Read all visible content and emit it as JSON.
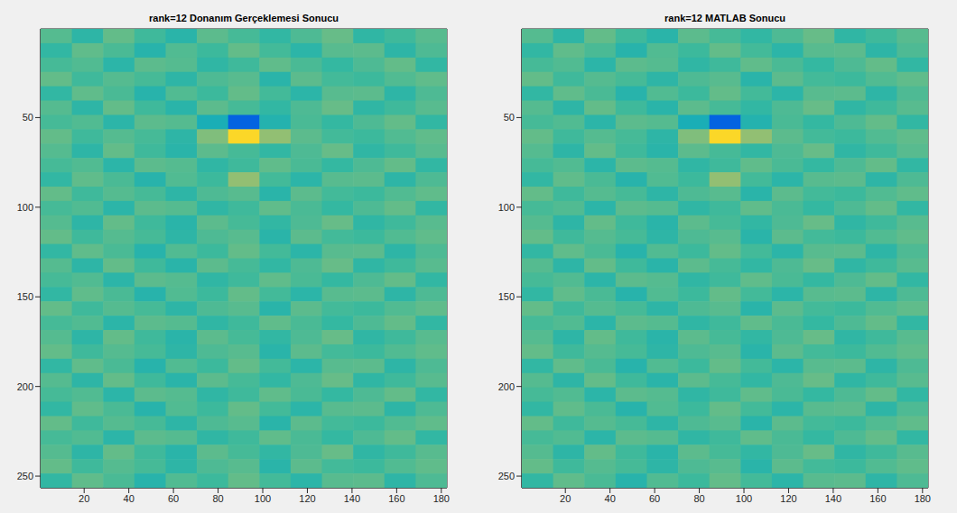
{
  "chart_data": [
    {
      "type": "heatmap",
      "title": "rank=12 Donanım Gerçeklemesi Sonucu",
      "x": [
        7.5,
        21.5,
        35.5,
        49.5,
        63.5,
        77.5,
        91.5,
        105.5,
        119.5,
        133.5,
        147.5,
        161.5,
        175.5
      ],
      "y": [
        4.5,
        12.5,
        20.5,
        28.5,
        36.5,
        44.5,
        52.5,
        60.5,
        68.5,
        76.5,
        84.5,
        92.5,
        100.5,
        108.5,
        116.5,
        124.5,
        132.5,
        140.5,
        148.5,
        156.5,
        164.5,
        172.5,
        180.5,
        188.5,
        196.5,
        204.5,
        212.5,
        220.5,
        228.5,
        236.5,
        244.5,
        252.5
      ],
      "z": [
        [
          0.08,
          -0.05,
          0.12,
          0.02,
          -0.07,
          0.1,
          0.04,
          -0.03,
          0.06,
          0.13,
          -0.04,
          0.02,
          0.09
        ],
        [
          -0.03,
          0.11,
          0.05,
          -0.08,
          0.07,
          0.01,
          0.12,
          0.03,
          -0.06,
          0.09,
          0.1,
          -0.05,
          0.06
        ],
        [
          0.04,
          0.07,
          -0.06,
          0.1,
          0.08,
          -0.04,
          0.02,
          0.11,
          0.05,
          -0.02,
          0.06,
          0.12,
          -0.03
        ],
        [
          0.12,
          0.02,
          0.08,
          0.04,
          -0.05,
          0.06,
          0.09,
          -0.07,
          0.1,
          0.03,
          0.01,
          0.07,
          0.11
        ],
        [
          -0.03,
          0.11,
          0.05,
          -0.08,
          0.07,
          0.01,
          0.12,
          0.03,
          -0.06,
          0.09,
          0.1,
          -0.05,
          0.06
        ],
        [
          0.08,
          -0.05,
          0.12,
          0.02,
          -0.07,
          0.1,
          0.04,
          -0.03,
          0.06,
          0.13,
          -0.04,
          0.02,
          0.09
        ],
        [
          0.04,
          0.07,
          -0.06,
          0.1,
          0.08,
          -0.15,
          -0.75,
          -0.1,
          0.05,
          -0.02,
          0.06,
          0.12,
          -0.03
        ],
        [
          0.12,
          0.02,
          0.08,
          0.04,
          -0.05,
          0.2,
          0.8,
          0.25,
          0.1,
          0.03,
          0.01,
          0.07,
          0.11
        ],
        [
          0.08,
          -0.05,
          0.12,
          0.02,
          -0.07,
          0.1,
          0.04,
          -0.03,
          0.06,
          0.13,
          -0.04,
          0.02,
          0.09
        ],
        [
          0.04,
          0.07,
          -0.06,
          0.1,
          0.08,
          -0.04,
          0.02,
          0.11,
          0.05,
          -0.02,
          0.06,
          0.12,
          -0.03
        ],
        [
          -0.03,
          0.11,
          0.05,
          -0.08,
          0.07,
          0.01,
          0.25,
          0.03,
          -0.06,
          0.09,
          0.1,
          -0.05,
          0.06
        ],
        [
          0.12,
          0.02,
          0.08,
          0.04,
          -0.05,
          0.06,
          0.09,
          -0.07,
          0.1,
          0.03,
          0.01,
          0.07,
          0.11
        ],
        [
          0.04,
          0.07,
          -0.06,
          0.1,
          0.08,
          -0.04,
          0.02,
          0.11,
          0.05,
          -0.02,
          0.06,
          0.12,
          -0.03
        ],
        [
          0.08,
          -0.05,
          0.12,
          0.02,
          -0.07,
          0.1,
          0.04,
          -0.03,
          0.06,
          0.13,
          -0.04,
          0.02,
          0.09
        ],
        [
          0.12,
          0.02,
          0.08,
          0.04,
          -0.05,
          0.06,
          0.09,
          -0.07,
          0.1,
          0.03,
          0.01,
          0.07,
          0.11
        ],
        [
          -0.03,
          0.11,
          0.05,
          -0.08,
          0.07,
          0.01,
          0.12,
          0.03,
          -0.06,
          0.09,
          0.1,
          -0.05,
          0.06
        ],
        [
          0.08,
          -0.05,
          0.12,
          0.02,
          -0.07,
          0.1,
          0.04,
          -0.03,
          0.06,
          0.13,
          -0.04,
          0.02,
          0.09
        ],
        [
          0.04,
          0.07,
          -0.06,
          0.1,
          0.08,
          -0.04,
          0.02,
          0.11,
          0.05,
          -0.02,
          0.06,
          0.12,
          -0.03
        ],
        [
          -0.03,
          0.11,
          0.05,
          -0.08,
          0.07,
          0.01,
          0.12,
          0.03,
          -0.06,
          0.09,
          0.1,
          -0.05,
          0.06
        ],
        [
          0.12,
          0.02,
          0.08,
          0.04,
          -0.05,
          0.06,
          0.09,
          -0.07,
          0.1,
          0.03,
          0.01,
          0.07,
          0.11
        ],
        [
          0.04,
          0.07,
          -0.06,
          0.1,
          0.08,
          -0.04,
          0.02,
          0.11,
          0.05,
          -0.02,
          0.06,
          0.12,
          -0.03
        ],
        [
          0.08,
          -0.05,
          0.12,
          0.02,
          -0.07,
          0.1,
          0.04,
          -0.03,
          0.06,
          0.13,
          -0.04,
          0.02,
          0.09
        ],
        [
          0.12,
          0.02,
          0.08,
          0.04,
          -0.05,
          0.06,
          0.09,
          -0.07,
          0.1,
          0.03,
          0.01,
          0.07,
          0.11
        ],
        [
          -0.03,
          0.11,
          0.05,
          -0.08,
          0.07,
          0.01,
          0.12,
          0.03,
          -0.06,
          0.09,
          0.1,
          -0.05,
          0.06
        ],
        [
          0.08,
          -0.05,
          0.12,
          0.02,
          -0.07,
          0.1,
          0.04,
          -0.03,
          0.06,
          0.13,
          -0.04,
          0.02,
          0.09
        ],
        [
          0.04,
          0.07,
          -0.06,
          0.1,
          0.08,
          -0.04,
          0.02,
          0.11,
          0.05,
          -0.02,
          0.06,
          0.12,
          -0.03
        ],
        [
          -0.03,
          0.11,
          0.05,
          -0.08,
          0.07,
          0.01,
          0.12,
          0.03,
          -0.06,
          0.09,
          0.1,
          -0.05,
          0.06
        ],
        [
          0.12,
          0.02,
          0.08,
          0.04,
          -0.05,
          0.06,
          0.09,
          -0.07,
          0.1,
          0.03,
          0.01,
          0.07,
          0.11
        ],
        [
          0.04,
          0.07,
          -0.06,
          0.1,
          0.08,
          -0.04,
          0.02,
          0.11,
          0.05,
          -0.02,
          0.06,
          0.12,
          -0.03
        ],
        [
          0.08,
          -0.05,
          0.12,
          0.02,
          -0.07,
          0.1,
          0.04,
          -0.03,
          0.06,
          0.13,
          -0.04,
          0.02,
          0.09
        ],
        [
          0.12,
          0.02,
          0.08,
          0.04,
          -0.05,
          0.06,
          0.09,
          -0.07,
          0.1,
          0.03,
          0.01,
          0.07,
          0.11
        ],
        [
          -0.03,
          0.11,
          0.05,
          -0.08,
          0.07,
          0.01,
          0.12,
          0.03,
          -0.06,
          0.09,
          0.1,
          -0.05,
          0.06
        ]
      ],
      "color_range": [
        -1,
        1
      ],
      "xlim": [
        0.5,
        182.5
      ],
      "ylim": [
        256.5,
        0.5
      ],
      "xticks": [
        20,
        40,
        60,
        80,
        100,
        120,
        140,
        160,
        180
      ],
      "yticks": [
        50,
        100,
        150,
        200,
        250
      ]
    },
    {
      "type": "heatmap",
      "title": "rank=12 MATLAB Sonucu",
      "x": [
        7.5,
        21.5,
        35.5,
        49.5,
        63.5,
        77.5,
        91.5,
        105.5,
        119.5,
        133.5,
        147.5,
        161.5,
        175.5
      ],
      "y": [
        4.5,
        12.5,
        20.5,
        28.5,
        36.5,
        44.5,
        52.5,
        60.5,
        68.5,
        76.5,
        84.5,
        92.5,
        100.5,
        108.5,
        116.5,
        124.5,
        132.5,
        140.5,
        148.5,
        156.5,
        164.5,
        172.5,
        180.5,
        188.5,
        196.5,
        204.5,
        212.5,
        220.5,
        228.5,
        236.5,
        244.5,
        252.5
      ],
      "z": [
        [
          0.08,
          -0.05,
          0.12,
          0.02,
          -0.07,
          0.1,
          0.04,
          -0.03,
          0.06,
          0.13,
          -0.04,
          0.02,
          0.09
        ],
        [
          -0.03,
          0.11,
          0.05,
          -0.08,
          0.07,
          0.01,
          0.12,
          0.03,
          -0.06,
          0.09,
          0.1,
          -0.05,
          0.06
        ],
        [
          0.04,
          0.07,
          -0.06,
          0.1,
          0.08,
          -0.04,
          0.02,
          0.11,
          0.05,
          -0.02,
          0.06,
          0.12,
          -0.03
        ],
        [
          0.12,
          0.02,
          0.08,
          0.04,
          -0.05,
          0.06,
          0.09,
          -0.07,
          0.1,
          0.03,
          0.01,
          0.07,
          0.11
        ],
        [
          -0.03,
          0.11,
          0.05,
          -0.08,
          0.07,
          0.01,
          0.12,
          0.03,
          -0.06,
          0.09,
          0.1,
          -0.05,
          0.06
        ],
        [
          0.08,
          -0.05,
          0.12,
          0.02,
          -0.07,
          0.1,
          0.04,
          -0.03,
          0.06,
          0.13,
          -0.04,
          0.02,
          0.09
        ],
        [
          0.04,
          0.07,
          -0.06,
          0.1,
          0.08,
          -0.15,
          -0.75,
          -0.1,
          0.05,
          -0.02,
          0.06,
          0.12,
          -0.03
        ],
        [
          0.12,
          0.02,
          0.08,
          0.04,
          -0.05,
          0.2,
          0.8,
          0.25,
          0.1,
          0.03,
          0.01,
          0.07,
          0.11
        ],
        [
          0.08,
          -0.05,
          0.12,
          0.02,
          -0.07,
          0.1,
          0.04,
          -0.03,
          0.06,
          0.13,
          -0.04,
          0.02,
          0.09
        ],
        [
          0.04,
          0.07,
          -0.06,
          0.1,
          0.08,
          -0.04,
          0.02,
          0.11,
          0.05,
          -0.02,
          0.06,
          0.12,
          -0.03
        ],
        [
          -0.03,
          0.11,
          0.05,
          -0.08,
          0.07,
          0.01,
          0.25,
          0.03,
          -0.06,
          0.09,
          0.1,
          -0.05,
          0.06
        ],
        [
          0.12,
          0.02,
          0.08,
          0.04,
          -0.05,
          0.06,
          0.09,
          -0.07,
          0.1,
          0.03,
          0.01,
          0.07,
          0.11
        ],
        [
          0.04,
          0.07,
          -0.06,
          0.1,
          0.08,
          -0.04,
          0.02,
          0.11,
          0.05,
          -0.02,
          0.06,
          0.12,
          -0.03
        ],
        [
          0.08,
          -0.05,
          0.12,
          0.02,
          -0.07,
          0.1,
          0.04,
          -0.03,
          0.06,
          0.13,
          -0.04,
          0.02,
          0.09
        ],
        [
          0.12,
          0.02,
          0.08,
          0.04,
          -0.05,
          0.06,
          0.09,
          -0.07,
          0.1,
          0.03,
          0.01,
          0.07,
          0.11
        ],
        [
          -0.03,
          0.11,
          0.05,
          -0.08,
          0.07,
          0.01,
          0.12,
          0.03,
          -0.06,
          0.09,
          0.1,
          -0.05,
          0.06
        ],
        [
          0.08,
          -0.05,
          0.12,
          0.02,
          -0.07,
          0.1,
          0.04,
          -0.03,
          0.06,
          0.13,
          -0.04,
          0.02,
          0.09
        ],
        [
          0.04,
          0.07,
          -0.06,
          0.1,
          0.08,
          -0.04,
          0.02,
          0.11,
          0.05,
          -0.02,
          0.06,
          0.12,
          -0.03
        ],
        [
          -0.03,
          0.11,
          0.05,
          -0.08,
          0.07,
          0.01,
          0.12,
          0.03,
          -0.06,
          0.09,
          0.1,
          -0.05,
          0.06
        ],
        [
          0.12,
          0.02,
          0.08,
          0.04,
          -0.05,
          0.06,
          0.09,
          -0.07,
          0.1,
          0.03,
          0.01,
          0.07,
          0.11
        ],
        [
          0.04,
          0.07,
          -0.06,
          0.1,
          0.08,
          -0.04,
          0.02,
          0.11,
          0.05,
          -0.02,
          0.06,
          0.12,
          -0.03
        ],
        [
          0.08,
          -0.05,
          0.12,
          0.02,
          -0.07,
          0.1,
          0.04,
          -0.03,
          0.06,
          0.13,
          -0.04,
          0.02,
          0.09
        ],
        [
          0.12,
          0.02,
          0.08,
          0.04,
          -0.05,
          0.06,
          0.09,
          -0.07,
          0.1,
          0.03,
          0.01,
          0.07,
          0.11
        ],
        [
          -0.03,
          0.11,
          0.05,
          -0.08,
          0.07,
          0.01,
          0.12,
          0.03,
          -0.06,
          0.09,
          0.1,
          -0.05,
          0.06
        ],
        [
          0.08,
          -0.05,
          0.12,
          0.02,
          -0.07,
          0.1,
          0.04,
          -0.03,
          0.06,
          0.13,
          -0.04,
          0.02,
          0.09
        ],
        [
          0.04,
          0.07,
          -0.06,
          0.1,
          0.08,
          -0.04,
          0.02,
          0.11,
          0.05,
          -0.02,
          0.06,
          0.12,
          -0.03
        ],
        [
          -0.03,
          0.11,
          0.05,
          -0.08,
          0.07,
          0.01,
          0.12,
          0.03,
          -0.06,
          0.09,
          0.1,
          -0.05,
          0.06
        ],
        [
          0.12,
          0.02,
          0.08,
          0.04,
          -0.05,
          0.06,
          0.09,
          -0.07,
          0.1,
          0.03,
          0.01,
          0.07,
          0.11
        ],
        [
          0.04,
          0.07,
          -0.06,
          0.1,
          0.08,
          -0.04,
          0.02,
          0.11,
          0.05,
          -0.02,
          0.06,
          0.12,
          -0.03
        ],
        [
          0.08,
          -0.05,
          0.12,
          0.02,
          -0.07,
          0.1,
          0.04,
          -0.03,
          0.06,
          0.13,
          -0.04,
          0.02,
          0.09
        ],
        [
          0.12,
          0.02,
          0.08,
          0.04,
          -0.05,
          0.06,
          0.09,
          -0.07,
          0.1,
          0.03,
          0.01,
          0.07,
          0.11
        ],
        [
          -0.03,
          0.11,
          0.05,
          -0.08,
          0.07,
          0.01,
          0.12,
          0.03,
          -0.06,
          0.09,
          0.1,
          -0.05,
          0.06
        ]
      ],
      "color_range": [
        -1,
        1
      ],
      "xlim": [
        0.5,
        182.5
      ],
      "ylim": [
        256.5,
        0.5
      ],
      "xticks": [
        20,
        40,
        60,
        80,
        100,
        120,
        140,
        160,
        180
      ],
      "yticks": [
        50,
        100,
        150,
        200,
        250
      ]
    }
  ]
}
